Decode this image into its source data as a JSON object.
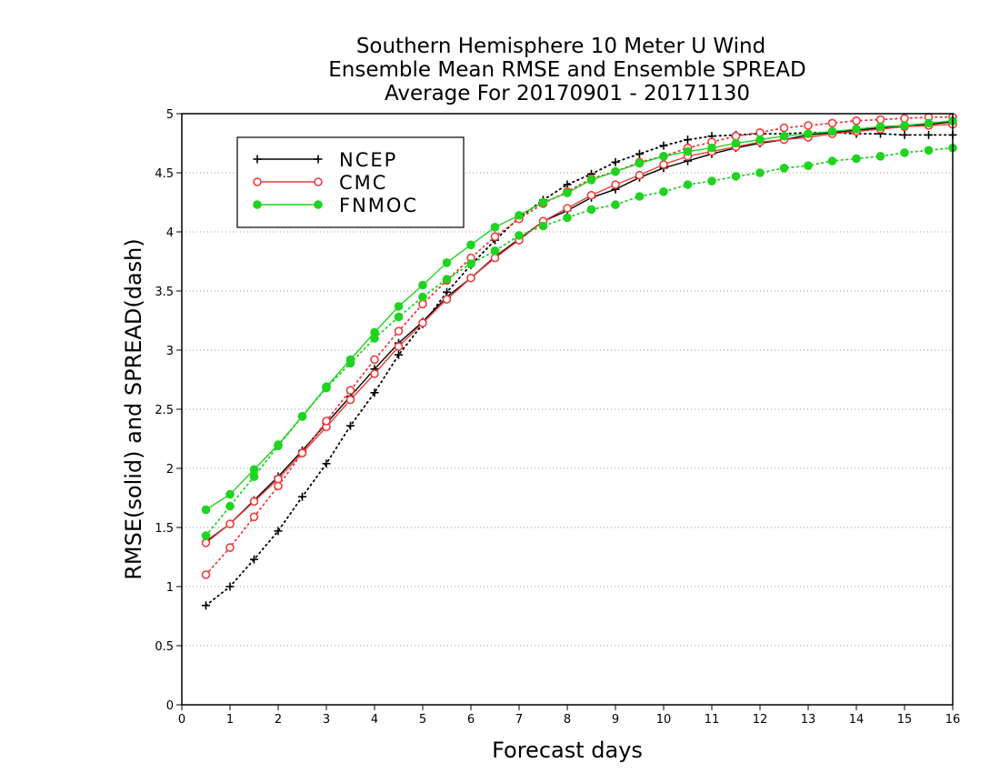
{
  "chart_data": {
    "type": "line",
    "title": [
      "Southern Hemisphere 10 Meter U Wind",
      "Ensemble Mean RMSE and Ensemble SPREAD",
      "Average For 20170901 - 20171130"
    ],
    "xlabel": "Forecast days",
    "ylabel": "RMSE(solid) and SPREAD(dash)",
    "xlim": [
      0,
      16
    ],
    "ylim": [
      0,
      5
    ],
    "xticks": [
      0,
      1,
      2,
      3,
      4,
      5,
      6,
      7,
      8,
      9,
      10,
      11,
      12,
      13,
      14,
      15,
      16
    ],
    "yticks": [
      0,
      0.5,
      1,
      1.5,
      2,
      2.5,
      3,
      3.5,
      4,
      4.5,
      5
    ],
    "ytick_labels": [
      "0",
      "0.5",
      "1",
      "1.5",
      "2",
      "2.5",
      "3",
      "3.5",
      "4",
      "4.5",
      "5"
    ],
    "grid": "horizontal dotted",
    "legend_position": "top-left",
    "x": [
      0.5,
      1,
      1.5,
      2,
      2.5,
      3,
      3.5,
      4,
      4.5,
      5,
      5.5,
      6,
      6.5,
      7,
      7.5,
      8,
      8.5,
      9,
      9.5,
      10,
      10.5,
      11,
      11.5,
      12,
      12.5,
      13,
      13.5,
      14,
      14.5,
      15,
      15.5,
      16
    ],
    "series": [
      {
        "name": "NCEP",
        "metric": "RMSE",
        "style": "solid",
        "marker": "plus",
        "color": "#000000",
        "values": [
          1.38,
          1.53,
          1.73,
          1.93,
          2.15,
          2.38,
          2.61,
          2.84,
          3.06,
          3.24,
          3.45,
          3.61,
          3.79,
          3.94,
          4.09,
          4.18,
          4.29,
          4.36,
          4.46,
          4.54,
          4.6,
          4.66,
          4.71,
          4.75,
          4.78,
          4.82,
          4.84,
          4.86,
          4.88,
          4.9,
          4.91,
          4.93
        ]
      },
      {
        "name": "NCEP",
        "metric": "SPREAD",
        "style": "dash",
        "marker": "plus",
        "color": "#000000",
        "values": [
          0.84,
          1.0,
          1.23,
          1.47,
          1.76,
          2.04,
          2.36,
          2.64,
          2.96,
          3.22,
          3.49,
          3.72,
          3.93,
          4.12,
          4.27,
          4.4,
          4.49,
          4.59,
          4.66,
          4.73,
          4.78,
          4.81,
          4.82,
          4.83,
          4.83,
          4.84,
          4.84,
          4.83,
          4.83,
          4.82,
          4.82,
          4.82
        ]
      },
      {
        "name": "CMC",
        "metric": "RMSE",
        "style": "solid",
        "marker": "open-circle",
        "color": "#ee3b3b",
        "values": [
          1.37,
          1.53,
          1.72,
          1.91,
          2.13,
          2.35,
          2.58,
          2.8,
          3.03,
          3.23,
          3.43,
          3.61,
          3.78,
          3.93,
          4.09,
          4.2,
          4.31,
          4.4,
          4.48,
          4.57,
          4.64,
          4.68,
          4.72,
          4.76,
          4.78,
          4.8,
          4.83,
          4.85,
          4.87,
          4.89,
          4.9,
          4.91
        ]
      },
      {
        "name": "CMC",
        "metric": "SPREAD",
        "style": "dash",
        "marker": "open-circle",
        "color": "#ee3b3b",
        "values": [
          1.1,
          1.33,
          1.59,
          1.85,
          2.13,
          2.4,
          2.66,
          2.92,
          3.16,
          3.39,
          3.59,
          3.78,
          3.96,
          4.11,
          4.24,
          4.34,
          4.45,
          4.51,
          4.59,
          4.64,
          4.71,
          4.76,
          4.81,
          4.84,
          4.88,
          4.9,
          4.92,
          4.94,
          4.95,
          4.96,
          4.97,
          4.97
        ]
      },
      {
        "name": "FNMOC",
        "metric": "RMSE",
        "style": "solid",
        "marker": "filled-circle",
        "color": "#1ed41e",
        "values": [
          1.65,
          1.78,
          1.99,
          2.2,
          2.44,
          2.69,
          2.92,
          3.15,
          3.37,
          3.55,
          3.74,
          3.89,
          4.04,
          4.14,
          4.25,
          4.33,
          4.44,
          4.51,
          4.58,
          4.64,
          4.68,
          4.71,
          4.75,
          4.78,
          4.81,
          4.83,
          4.85,
          4.87,
          4.89,
          4.9,
          4.92,
          4.94
        ]
      },
      {
        "name": "FNMOC",
        "metric": "SPREAD",
        "style": "dash",
        "marker": "filled-circle",
        "color": "#1ed41e",
        "values": [
          1.43,
          1.68,
          1.93,
          2.19,
          2.44,
          2.68,
          2.89,
          3.1,
          3.28,
          3.45,
          3.6,
          3.73,
          3.84,
          3.97,
          4.05,
          4.12,
          4.19,
          4.23,
          4.3,
          4.34,
          4.4,
          4.43,
          4.47,
          4.5,
          4.54,
          4.56,
          4.6,
          4.62,
          4.64,
          4.67,
          4.69,
          4.71
        ]
      }
    ],
    "legend": [
      {
        "label": "NCEP",
        "color": "#000000",
        "marker": "plus"
      },
      {
        "label": "CMC",
        "color": "#ee3b3b",
        "marker": "open-circle"
      },
      {
        "label": "FNMOC",
        "color": "#1ed41e",
        "marker": "filled-circle"
      }
    ]
  }
}
